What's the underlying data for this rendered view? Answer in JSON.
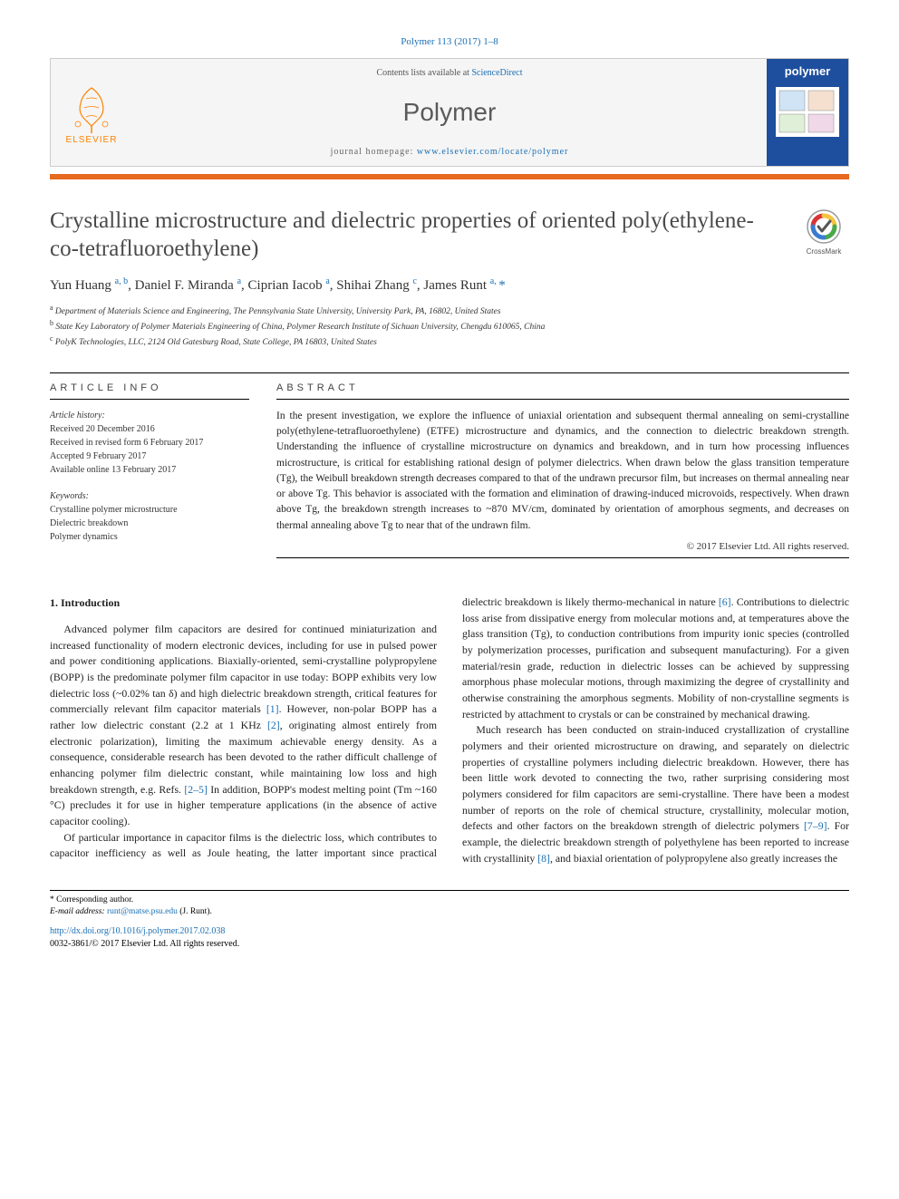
{
  "citation": "Polymer 113 (2017) 1–8",
  "header": {
    "contents_prefix": "Contents lists available at ",
    "contents_link": "ScienceDirect",
    "journal": "Polymer",
    "homepage_prefix": "journal homepage: ",
    "homepage_url": "www.elsevier.com/locate/polymer",
    "publisher": "ELSEVIER",
    "cover_label": "polymer"
  },
  "title": "Crystalline microstructure and dielectric properties of oriented poly(ethylene-co-tetrafluoroethylene)",
  "crossmark_label": "CrossMark",
  "authors_html": "Yun Huang <sup>a, b</sup>, Daniel F. Miranda <sup>a</sup>, Ciprian Iacob <sup>a</sup>, Shihai Zhang <sup>c</sup>, James Runt <sup>a, </sup><span class='corr'>*</span>",
  "affiliations": [
    {
      "sup": "a",
      "text": "Department of Materials Science and Engineering, The Pennsylvania State University, University Park, PA, 16802, United States"
    },
    {
      "sup": "b",
      "text": "State Key Laboratory of Polymer Materials Engineering of China, Polymer Research Institute of Sichuan University, Chengdu 610065, China"
    },
    {
      "sup": "c",
      "text": "PolyK Technologies, LLC, 2124 Old Gatesburg Road, State College, PA 16803, United States"
    }
  ],
  "article_info": {
    "heading": "ARTICLE INFO",
    "history_label": "Article history:",
    "received": "Received 20 December 2016",
    "revised": "Received in revised form 6 February 2017",
    "accepted": "Accepted 9 February 2017",
    "online": "Available online 13 February 2017",
    "keywords_label": "Keywords:",
    "keywords": [
      "Crystalline polymer microstructure",
      "Dielectric breakdown",
      "Polymer dynamics"
    ]
  },
  "abstract": {
    "heading": "ABSTRACT",
    "text": "In the present investigation, we explore the influence of uniaxial orientation and subsequent thermal annealing on semi-crystalline poly(ethylene-tetrafluoroethylene) (ETFE) microstructure and dynamics, and the connection to dielectric breakdown strength. Understanding the influence of crystalline microstructure on dynamics and breakdown, and in turn how processing influences microstructure, is critical for establishing rational design of polymer dielectrics. When drawn below the glass transition temperature (Tg), the Weibull breakdown strength decreases compared to that of the undrawn precursor film, but increases on thermal annealing near or above Tg. This behavior is associated with the formation and elimination of drawing-induced microvoids, respectively. When drawn above Tg, the breakdown strength increases to ~870 MV/cm, dominated by orientation of amorphous segments, and decreases on thermal annealing above Tg to near that of the undrawn film.",
    "copyright": "© 2017 Elsevier Ltd. All rights reserved."
  },
  "body": {
    "heading": "1. Introduction",
    "paragraphs": [
      "Advanced polymer film capacitors are desired for continued miniaturization and increased functionality of modern electronic devices, including for use in pulsed power and power conditioning applications. Biaxially-oriented, semi-crystalline polypropylene (BOPP) is the predominate polymer film capacitor in use today: BOPP exhibits very low dielectric loss (~0.02% tan δ) and high dielectric breakdown strength, critical features for commercially relevant film capacitor materials <span class='ref-link'>[1]</span>. However, non-polar BOPP has a rather low dielectric constant (2.2 at 1 KHz <span class='ref-link'>[2]</span>, originating almost entirely from electronic polarization), limiting the maximum achievable energy density. As a consequence, considerable research has been devoted to the rather difficult challenge of enhancing polymer film dielectric constant, while maintaining low loss and high breakdown strength, e.g. Refs. <span class='ref-link'>[2–5]</span> In addition, BOPP's modest melting point (Tm ~160 °C) precludes it for use in higher temperature applications (in the absence of active capacitor cooling).",
      "Of particular importance in capacitor films is the dielectric loss, which contributes to capacitor inefficiency as well as Joule heating, the latter important since practical dielectric breakdown is likely thermo-mechanical in nature <span class='ref-link'>[6]</span>. Contributions to dielectric loss arise from dissipative energy from molecular motions and, at temperatures above the glass transition (Tg), to conduction contributions from impurity ionic species (controlled by polymerization processes, purification and subsequent manufacturing). For a given material/resin grade, reduction in dielectric losses can be achieved by suppressing amorphous phase molecular motions, through maximizing the degree of crystallinity and otherwise constraining the amorphous segments. Mobility of non-crystalline segments is restricted by attachment to crystals or can be constrained by mechanical drawing.",
      "Much research has been conducted on strain-induced crystallization of crystalline polymers and their oriented microstructure on drawing, and separately on dielectric properties of crystalline polymers including dielectric breakdown. However, there has been little work devoted to connecting the two, rather surprising considering most polymers considered for film capacitors are semi-crystalline. There have been a modest number of reports on the role of chemical structure, crystallinity, molecular motion, defects and other factors on the breakdown strength of dielectric polymers <span class='ref-link'>[7–9]</span>. For example, the dielectric breakdown strength of polyethylene has been reported to increase with crystallinity <span class='ref-link'>[8]</span>, and biaxial orientation of polypropylene also greatly increases the"
    ]
  },
  "footer": {
    "corr_label": "* Corresponding author.",
    "email_label": "E-mail address: ",
    "email": "runt@matse.psu.edu",
    "email_suffix": " (J. Runt).",
    "doi": "http://dx.doi.org/10.1016/j.polymer.2017.02.038",
    "issn": "0032-3861/© 2017 Elsevier Ltd. All rights reserved."
  },
  "colors": {
    "link": "#1a6fb4",
    "elsevier_orange": "#ff8200",
    "bar_orange": "#e66a1f",
    "cover_blue": "#1e4f9e"
  }
}
